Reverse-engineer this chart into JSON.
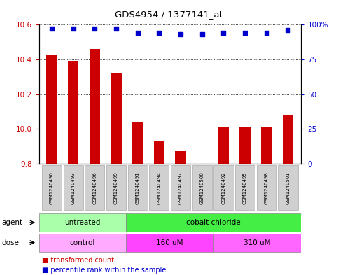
{
  "title": "GDS4954 / 1377141_at",
  "samples": [
    "GSM1240490",
    "GSM1240493",
    "GSM1240496",
    "GSM1240499",
    "GSM1240491",
    "GSM1240494",
    "GSM1240497",
    "GSM1240500",
    "GSM1240492",
    "GSM1240495",
    "GSM1240498",
    "GSM1240501"
  ],
  "bar_values": [
    10.43,
    10.39,
    10.46,
    10.32,
    10.04,
    9.93,
    9.87,
    9.8,
    10.01,
    10.01,
    10.01,
    10.08
  ],
  "percentile_values": [
    97,
    97,
    97,
    97,
    94,
    94,
    93,
    93,
    94,
    94,
    94,
    96
  ],
  "bar_color": "#cc0000",
  "dot_color": "#0000cc",
  "ylim_left": [
    9.8,
    10.6
  ],
  "ylim_right": [
    0,
    100
  ],
  "yticks_left": [
    9.8,
    10.0,
    10.2,
    10.4,
    10.6
  ],
  "yticks_right": [
    0,
    25,
    50,
    75,
    100
  ],
  "agent_groups": [
    {
      "label": "untreated",
      "start": 0,
      "end": 4,
      "color": "#aaffaa"
    },
    {
      "label": "cobalt chloride",
      "start": 4,
      "end": 12,
      "color": "#44ee44"
    }
  ],
  "dose_groups": [
    {
      "label": "control",
      "start": 0,
      "end": 4,
      "color": "#ffaaff"
    },
    {
      "label": "160 uM",
      "start": 4,
      "end": 8,
      "color": "#ff44ff"
    },
    {
      "label": "310 uM",
      "start": 8,
      "end": 12,
      "color": "#ff66ff"
    }
  ],
  "sample_box_color": "#d0d0d0",
  "background_color": "#ffffff",
  "bar_width": 0.5,
  "tick_color_left": "#cc0000",
  "tick_color_right": "#0000cc"
}
